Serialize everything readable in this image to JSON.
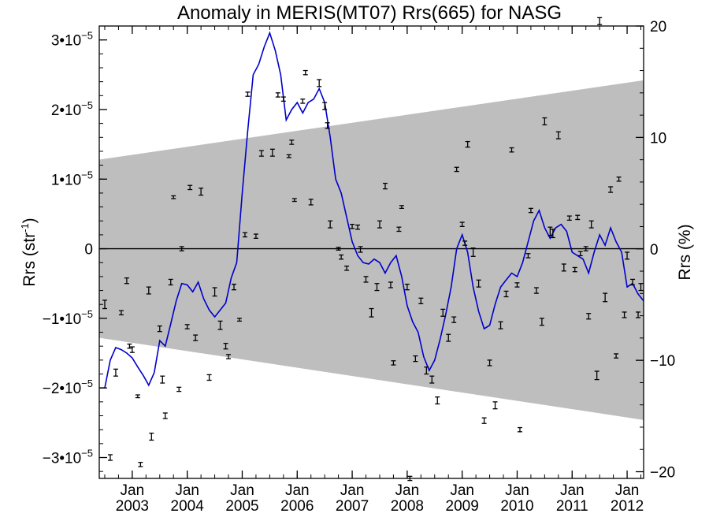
{
  "chart_data": {
    "type": "line",
    "title": "Anomaly in MERIS(MT07) Rrs(665) for NASG",
    "ylabel_left": "Rrs (str",
    "ylabel_left_exp": "-1",
    "ylabel_left_close": ")",
    "ylabel_right": "Rrs (%)",
    "xlim": [
      2002.4,
      2012.3
    ],
    "ylim_left": [
      -3.3e-05,
      3.2e-05
    ],
    "ylim_right": [
      -20.6,
      20.0
    ],
    "grid": false,
    "left_ticks": [
      {
        "value": 3e-05,
        "mant": "3•10",
        "exp": "−5"
      },
      {
        "value": 2e-05,
        "mant": "2•10",
        "exp": "−5"
      },
      {
        "value": 1e-05,
        "mant": "1•10",
        "exp": "−5"
      },
      {
        "value": 0,
        "mant": "0",
        "exp": ""
      },
      {
        "value": -1e-05,
        "mant": "−1•10",
        "exp": "−5"
      },
      {
        "value": -2e-05,
        "mant": "−2•10",
        "exp": "−5"
      },
      {
        "value": -3e-05,
        "mant": "−3•10",
        "exp": "−5"
      }
    ],
    "right_ticks": [
      {
        "value": 20,
        "label": "20"
      },
      {
        "value": 10,
        "label": "10"
      },
      {
        "value": 0,
        "label": "0"
      },
      {
        "value": -10,
        "label": "−10"
      },
      {
        "value": -20,
        "label": "−20"
      }
    ],
    "x_ticks": [
      {
        "value": 2003,
        "month": "Jan",
        "year": "2003"
      },
      {
        "value": 2004,
        "month": "Jan",
        "year": "2004"
      },
      {
        "value": 2005,
        "month": "Jan",
        "year": "2005"
      },
      {
        "value": 2006,
        "month": "Jan",
        "year": "2006"
      },
      {
        "value": 2007,
        "month": "Jan",
        "year": "2007"
      },
      {
        "value": 2008,
        "month": "Jan",
        "year": "2008"
      },
      {
        "value": 2009,
        "month": "Jan",
        "year": "2009"
      },
      {
        "value": 2010,
        "month": "Jan",
        "year": "2010"
      },
      {
        "value": 2011,
        "month": "Jan",
        "year": "2011"
      },
      {
        "value": 2012,
        "month": "Jan",
        "year": "2012"
      }
    ],
    "band": {
      "color": "#bebebe",
      "upper": [
        [
          2002.4,
          1.28e-05
        ],
        [
          2012.3,
          2.42e-05
        ]
      ],
      "lower": [
        [
          2002.4,
          -1.28e-05
        ],
        [
          2012.3,
          -2.46e-05
        ]
      ]
    },
    "series": [
      {
        "type": "line",
        "color": "#0000cc",
        "x": [
          2002.4,
          2002.5,
          2002.6,
          2002.7,
          2002.8,
          2002.9,
          2003.0,
          2003.1,
          2003.2,
          2003.3,
          2003.4,
          2003.5,
          2003.6,
          2003.7,
          2003.8,
          2003.9,
          2004.0,
          2004.1,
          2004.2,
          2004.3,
          2004.4,
          2004.5,
          2004.6,
          2004.7,
          2004.8,
          2004.9,
          2005.0,
          2005.1,
          2005.2,
          2005.3,
          2005.4,
          2005.5,
          2005.6,
          2005.7,
          2005.8,
          2005.9,
          2006.0,
          2006.1,
          2006.2,
          2006.3,
          2006.4,
          2006.5,
          2006.6,
          2006.7,
          2006.8,
          2006.9,
          2007.0,
          2007.1,
          2007.2,
          2007.3,
          2007.4,
          2007.5,
          2007.6,
          2007.7,
          2007.8,
          2007.9,
          2008.0,
          2008.1,
          2008.2,
          2008.3,
          2008.4,
          2008.5,
          2008.6,
          2008.7,
          2008.8,
          2008.9,
          2009.0,
          2009.1,
          2009.2,
          2009.3,
          2009.4,
          2009.5,
          2009.6,
          2009.7,
          2009.8,
          2009.9,
          2010.0,
          2010.1,
          2010.2,
          2010.3,
          2010.4,
          2010.5,
          2010.6,
          2010.7,
          2010.8,
          2010.9,
          2011.0,
          2011.1,
          2011.2,
          2011.3,
          2011.4,
          2011.5,
          2011.6,
          2011.7,
          2011.8,
          2011.9,
          2012.0,
          2012.1,
          2012.2,
          2012.3
        ],
        "y": [
          -2e-05,
          -2e-05,
          -1.6e-05,
          -1.42e-05,
          -1.45e-05,
          -1.5e-05,
          -1.57e-05,
          -1.7e-05,
          -1.82e-05,
          -1.96e-05,
          -1.78e-05,
          -1.32e-05,
          -1.4e-05,
          -1.08e-05,
          -7.5e-06,
          -5e-06,
          -5.2e-06,
          -6.2e-06,
          -4.8e-06,
          -7.2e-06,
          -8.8e-06,
          -9.8e-06,
          -8.8e-06,
          -7.8e-06,
          -4.2e-06,
          -2e-06,
          8e-06,
          1.7e-05,
          2.5e-05,
          2.65e-05,
          2.9e-05,
          3.1e-05,
          2.85e-05,
          2.5e-05,
          1.85e-05,
          2e-05,
          2.1e-05,
          1.95e-05,
          2.1e-05,
          2.15e-05,
          2.3e-05,
          2.1e-05,
          1.6e-05,
          1e-05,
          8e-06,
          4.5e-06,
          1e-06,
          -1e-06,
          -2e-06,
          -2.2e-06,
          -1.5e-06,
          -2e-06,
          -3.5e-06,
          -2e-06,
          -1e-06,
          -4e-06,
          -8.2e-06,
          -1.05e-05,
          -1.2e-05,
          -1.55e-05,
          -1.75e-05,
          -1.6e-05,
          -1.3e-05,
          -9.5e-06,
          -5.5e-06,
          0.0,
          2e-06,
          -5e-07,
          -5.5e-06,
          -9e-06,
          -1.15e-05,
          -1.1e-05,
          -8e-06,
          -5.5e-06,
          -4.5e-06,
          -3.5e-06,
          -4e-06,
          -2e-06,
          1e-06,
          4e-06,
          5.5e-06,
          3e-06,
          1.5e-06,
          3e-06,
          3.5e-06,
          2.5e-06,
          -5e-07,
          -1e-06,
          -1.5e-06,
          -3.5e-06,
          -5e-07,
          2e-06,
          5e-07,
          3e-06,
          1e-06,
          -5e-07,
          -5.5e-06,
          -5e-06,
          -6.5e-06,
          -7.5e-06
        ]
      },
      {
        "type": "errorbar",
        "color": "#000000",
        "x": [
          2002.5,
          2002.6,
          2002.7,
          2002.8,
          2002.9,
          2002.95,
          2003.0,
          2003.1,
          2003.15,
          2003.3,
          2003.35,
          2003.5,
          2003.55,
          2003.6,
          2003.7,
          2003.75,
          2003.85,
          2003.9,
          2004.0,
          2004.05,
          2004.15,
          2004.25,
          2004.4,
          2004.5,
          2004.6,
          2004.7,
          2004.75,
          2004.85,
          2004.95,
          2005.05,
          2005.1,
          2005.25,
          2005.35,
          2005.55,
          2005.65,
          2005.75,
          2005.85,
          2005.9,
          2005.95,
          2006.1,
          2006.15,
          2006.25,
          2006.4,
          2006.5,
          2006.55,
          2006.6,
          2006.75,
          2006.8,
          2006.9,
          2007.0,
          2007.1,
          2007.15,
          2007.25,
          2007.35,
          2007.45,
          2007.5,
          2007.6,
          2007.7,
          2007.75,
          2007.85,
          2007.9,
          2008.0,
          2008.05,
          2008.15,
          2008.25,
          2008.35,
          2008.45,
          2008.55,
          2008.65,
          2008.75,
          2008.85,
          2008.9,
          2009.0,
          2009.05,
          2009.1,
          2009.2,
          2009.3,
          2009.4,
          2009.5,
          2009.6,
          2009.7,
          2009.8,
          2009.9,
          2010.0,
          2010.05,
          2010.2,
          2010.25,
          2010.35,
          2010.45,
          2010.5,
          2010.6,
          2010.65,
          2010.75,
          2010.85,
          2010.95,
          2011.05,
          2011.1,
          2011.15,
          2011.25,
          2011.3,
          2011.35,
          2011.45,
          2011.5,
          2011.6,
          2011.7,
          2011.8,
          2011.85,
          2011.95,
          2012.0,
          2012.1,
          2012.2,
          2012.25
        ],
        "y": [
          -8e-06,
          -3e-05,
          -1.78e-05,
          -9.2e-06,
          -4.6e-06,
          -1.4e-05,
          -1.45e-05,
          -2.12e-05,
          -3.1e-05,
          -6e-06,
          -2.7e-05,
          -1.15e-05,
          -1.88e-05,
          -2.4e-05,
          -4.8e-06,
          7.4e-06,
          -2.02e-05,
          0.0,
          -1.12e-05,
          8.8e-06,
          -1.28e-05,
          8.2e-06,
          -1.85e-05,
          -6.2e-06,
          -1.1e-05,
          -1.4e-05,
          -1.55e-05,
          -5.5e-06,
          -1.02e-05,
          2e-06,
          2.22e-05,
          1.8e-06,
          1.37e-05,
          1.38e-05,
          2.21e-05,
          2.15e-05,
          1.33e-05,
          1.53e-05,
          7e-06,
          2.12e-05,
          2.53e-05,
          6.7e-06,
          2.38e-05,
          2.05e-05,
          1.77e-05,
          3.5e-06,
          0.0,
          -1.2e-06,
          -2.8e-06,
          3.2e-06,
          3.1e-06,
          -1e-07,
          -4.4e-06,
          -9.2e-06,
          -5.5e-06,
          3.5e-06,
          9e-06,
          -5.2e-06,
          -1.64e-05,
          2.8e-06,
          6e-06,
          -5.5e-06,
          -3.3e-05,
          -1.58e-05,
          -7.5e-06,
          -1.75e-05,
          -1.88e-05,
          -2.18e-05,
          -9.2e-06,
          -1.28e-05,
          -1.02e-05,
          1.14e-05,
          3.5e-06,
          8e-07,
          1.5e-05,
          -5e-07,
          -5e-06,
          -2.47e-05,
          -1.64e-05,
          -2.25e-05,
          -1.1e-05,
          -6.5e-06,
          1.42e-05,
          -5.2e-06,
          -2.6e-05,
          -1e-06,
          5.5e-06,
          -6e-06,
          -1.05e-05,
          1.83e-05,
          2.5e-06,
          2.2e-06,
          1.63e-05,
          -2.7e-06,
          4.4e-06,
          -3e-06,
          4.5e-06,
          -7e-07,
          0.0,
          -9.7e-06,
          3.5e-06,
          -1.82e-05,
          3.27e-05,
          -7e-06,
          8.5e-06,
          -1.54e-05,
          1e-05,
          -9.5e-06,
          -1e-06,
          -4.8e-06,
          -9.5e-06,
          -5.5e-06
        ],
        "err": [
          6e-07,
          4e-07,
          5e-07,
          3e-07,
          4e-07,
          3e-07,
          4e-07,
          2e-07,
          3e-07,
          5e-07,
          5e-07,
          4e-07,
          5e-07,
          4e-07,
          4e-07,
          2e-07,
          3e-07,
          3e-07,
          3e-07,
          3e-07,
          4e-07,
          5e-07,
          4e-07,
          6e-07,
          6e-07,
          4e-07,
          3e-07,
          4e-07,
          2e-07,
          3e-07,
          3e-07,
          3e-07,
          4e-07,
          5e-07,
          3e-07,
          3e-07,
          2e-07,
          3e-07,
          2e-07,
          3e-07,
          3e-07,
          4e-07,
          5e-07,
          5e-07,
          4e-07,
          5e-07,
          2e-07,
          3e-07,
          3e-07,
          3e-07,
          3e-07,
          4e-07,
          4e-07,
          6e-07,
          5e-07,
          5e-07,
          4e-07,
          4e-07,
          3e-07,
          3e-07,
          2e-07,
          4e-07,
          3e-07,
          4e-07,
          4e-07,
          5e-07,
          5e-07,
          5e-07,
          5e-07,
          5e-07,
          4e-07,
          3e-07,
          3e-07,
          3e-07,
          4e-07,
          6e-07,
          5e-07,
          4e-07,
          4e-07,
          5e-07,
          5e-07,
          4e-07,
          3e-07,
          3e-07,
          3e-07,
          3e-07,
          3e-07,
          4e-07,
          5e-07,
          5e-07,
          6e-07,
          6e-07,
          5e-07,
          5e-07,
          3e-07,
          3e-07,
          3e-07,
          3e-07,
          3e-07,
          4e-07,
          5e-07,
          6e-07,
          5e-07,
          6e-07,
          4e-07,
          3e-07,
          3e-07,
          4e-07,
          5e-07,
          4e-07,
          4e-07,
          5e-07
        ]
      }
    ]
  }
}
